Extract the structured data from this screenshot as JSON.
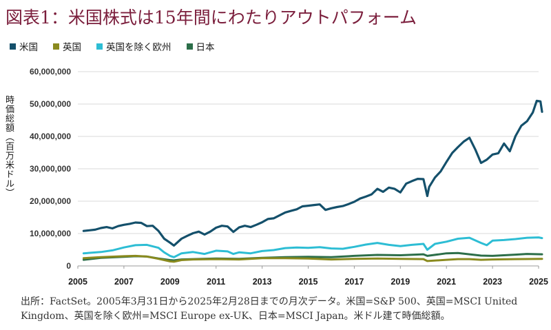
{
  "title": "図表1：米国株式は15年間にわたりアウトパフォーム",
  "note": "出所：FactSet。2005年3月31日から2025年2月28日までの月次データ。米国=S&P 500、英国=MSCI United Kingdom、英国を除く欧州=MSCI Europe ex-UK、日本=MSCI Japan。米ドル建て時価総額。",
  "colors": {
    "us": "#14506b",
    "uk": "#8a8a1e",
    "europe": "#2dbdd4",
    "japan": "#2c6e49",
    "grid": "#d9d9d9"
  },
  "chart_data": {
    "type": "line",
    "ylabel": "時価総額（百万米ドル）",
    "ylim": [
      0,
      60000000
    ],
    "xlim": [
      2005,
      2025
    ],
    "yticks": [
      "0",
      "10,000,000",
      "20,000,000",
      "30,000,000",
      "40,000,000",
      "50,000,000",
      "60,000,000"
    ],
    "xticks": [
      "2005",
      "2007",
      "2009",
      "2011",
      "2013",
      "2015",
      "2017",
      "2019",
      "2021",
      "2023",
      "2025"
    ],
    "legend_position": "top-left",
    "series": [
      {
        "key": "us",
        "name": "米国",
        "x": [
          2005.25,
          2005.5,
          2005.75,
          2006.0,
          2006.25,
          2006.5,
          2006.75,
          2007.0,
          2007.25,
          2007.5,
          2007.75,
          2008.0,
          2008.25,
          2008.5,
          2008.75,
          2009.0,
          2009.17,
          2009.5,
          2009.75,
          2010.0,
          2010.25,
          2010.5,
          2010.75,
          2011.0,
          2011.25,
          2011.5,
          2011.75,
          2012.0,
          2012.25,
          2012.5,
          2012.75,
          2013.0,
          2013.25,
          2013.5,
          2013.75,
          2014.0,
          2014.25,
          2014.5,
          2014.75,
          2015.0,
          2015.25,
          2015.5,
          2015.75,
          2016.0,
          2016.25,
          2016.5,
          2016.75,
          2017.0,
          2017.25,
          2017.5,
          2017.75,
          2018.0,
          2018.25,
          2018.5,
          2018.75,
          2019.0,
          2019.25,
          2019.5,
          2019.75,
          2020.0,
          2020.17,
          2020.25,
          2020.5,
          2020.75,
          2021.0,
          2021.25,
          2021.5,
          2021.75,
          2022.0,
          2022.25,
          2022.5,
          2022.75,
          2023.0,
          2023.25,
          2023.5,
          2023.75,
          2024.0,
          2024.25,
          2024.5,
          2024.75,
          2024.92,
          2025.08,
          2025.15
        ],
        "values": [
          10800000,
          11000000,
          11200000,
          11700000,
          12000000,
          11600000,
          12300000,
          12700000,
          13000000,
          13400000,
          13300000,
          12300000,
          12400000,
          10800000,
          8400000,
          7200000,
          6300000,
          8400000,
          9300000,
          10100000,
          10600000,
          9700000,
          10600000,
          11800000,
          12400000,
          12200000,
          10500000,
          11900000,
          12400000,
          12000000,
          12700000,
          13500000,
          14500000,
          14700000,
          15600000,
          16500000,
          17000000,
          17500000,
          18400000,
          18600000,
          18800000,
          19000000,
          17300000,
          17800000,
          18200000,
          18500000,
          19100000,
          19800000,
          20800000,
          21400000,
          22100000,
          23800000,
          22900000,
          24200000,
          23800000,
          22700000,
          25400000,
          26200000,
          26900000,
          26800000,
          21600000,
          24400000,
          27300000,
          29200000,
          32100000,
          34900000,
          36700000,
          38400000,
          39600000,
          36000000,
          31800000,
          32800000,
          34400000,
          34800000,
          37800000,
          35400000,
          40100000,
          43300000,
          44700000,
          47400000,
          51000000,
          50800000,
          47600000
        ]
      },
      {
        "key": "europe",
        "name": "英国を除く欧州",
        "x": [
          2005.25,
          2006.0,
          2006.5,
          2007.0,
          2007.5,
          2008.0,
          2008.5,
          2008.75,
          2009.0,
          2009.17,
          2009.5,
          2010.0,
          2010.5,
          2011.0,
          2011.5,
          2011.75,
          2012.0,
          2012.5,
          2013.0,
          2013.5,
          2014.0,
          2014.5,
          2015.0,
          2015.5,
          2016.0,
          2016.5,
          2017.0,
          2017.5,
          2018.0,
          2018.5,
          2019.0,
          2019.5,
          2020.0,
          2020.17,
          2020.5,
          2021.0,
          2021.5,
          2022.0,
          2022.5,
          2022.75,
          2023.0,
          2023.5,
          2024.0,
          2024.5,
          2025.0,
          2025.15
        ],
        "values": [
          3900000,
          4300000,
          4800000,
          5700000,
          6400000,
          6500000,
          5600000,
          4200000,
          3100000,
          2700000,
          3900000,
          4300000,
          3700000,
          4700000,
          4500000,
          3700000,
          4200000,
          3900000,
          4600000,
          4900000,
          5500000,
          5700000,
          5600000,
          5800000,
          5400000,
          5300000,
          5900000,
          6600000,
          7100000,
          6500000,
          6100000,
          6500000,
          6800000,
          5000000,
          6800000,
          7500000,
          8400000,
          8700000,
          7100000,
          6400000,
          7800000,
          8000000,
          8300000,
          8700000,
          8800000,
          8600000
        ]
      },
      {
        "key": "japan",
        "name": "日本",
        "x": [
          2005.25,
          2006.0,
          2007.0,
          2007.5,
          2008.0,
          2008.5,
          2009.0,
          2009.17,
          2009.5,
          2010.0,
          2011.0,
          2012.0,
          2013.0,
          2014.0,
          2015.0,
          2016.0,
          2017.0,
          2018.0,
          2019.0,
          2020.0,
          2020.17,
          2021.0,
          2021.5,
          2022.0,
          2022.5,
          2023.0,
          2024.0,
          2024.5,
          2025.15
        ],
        "values": [
          1900000,
          2500000,
          2800000,
          3000000,
          2900000,
          2300000,
          1800000,
          1700000,
          2000000,
          2100000,
          2300000,
          2200000,
          2500000,
          2700000,
          2800000,
          2700000,
          3100000,
          3400000,
          3300000,
          3600000,
          3100000,
          3900000,
          4000000,
          3600000,
          3200000,
          3100000,
          3500000,
          3700000,
          3600000
        ]
      },
      {
        "key": "uk",
        "name": "英国",
        "x": [
          2005.25,
          2006.0,
          2007.0,
          2007.5,
          2008.0,
          2008.5,
          2009.0,
          2009.17,
          2009.5,
          2010.0,
          2011.0,
          2012.0,
          2013.0,
          2014.0,
          2015.0,
          2016.0,
          2017.0,
          2018.0,
          2019.0,
          2020.0,
          2020.17,
          2021.0,
          2021.5,
          2022.0,
          2022.5,
          2023.0,
          2024.0,
          2025.15
        ],
        "values": [
          2400000,
          2700000,
          3000000,
          3100000,
          2900000,
          2200000,
          1400000,
          1300000,
          1800000,
          2000000,
          2100000,
          2000000,
          2400000,
          2400000,
          2300000,
          2000000,
          2200000,
          2300000,
          2200000,
          2100000,
          1500000,
          1900000,
          2100000,
          2100000,
          1900000,
          2000000,
          2100000,
          2200000
        ]
      }
    ]
  },
  "legend": [
    {
      "key": "us",
      "label": "米国"
    },
    {
      "key": "uk",
      "label": "英国"
    },
    {
      "key": "europe",
      "label": "英国を除く欧州"
    },
    {
      "key": "japan",
      "label": "日本"
    }
  ]
}
